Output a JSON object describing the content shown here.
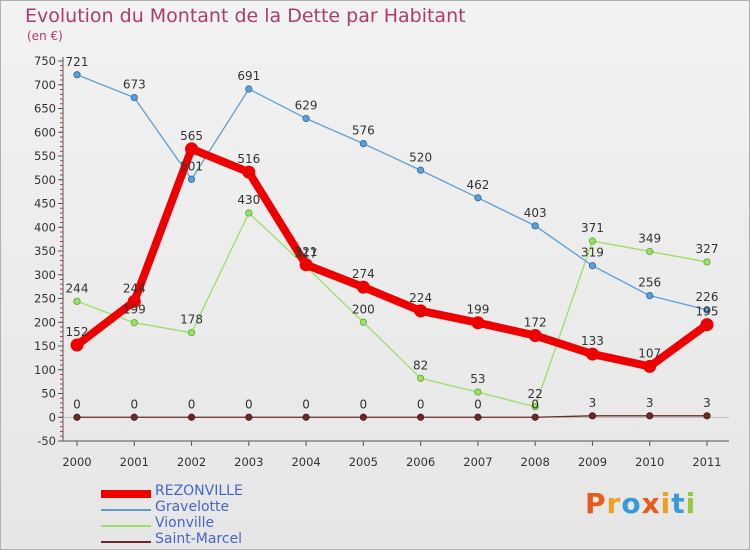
{
  "chart_data": {
    "type": "line",
    "title": "Evolution du Montant de la Dette par Habitant",
    "subtitle": "(en €)",
    "categories": [
      "2000",
      "2001",
      "2002",
      "2003",
      "2004",
      "2005",
      "2006",
      "2007",
      "2008",
      "2009",
      "2010",
      "2011"
    ],
    "ylim": [
      -50,
      750
    ],
    "yticks": [
      -50,
      0,
      50,
      100,
      150,
      200,
      250,
      300,
      350,
      400,
      450,
      500,
      550,
      600,
      650,
      700,
      750
    ],
    "grid": false,
    "legend_position": "bottom-left",
    "series": [
      {
        "name": "REZONVILLE",
        "color": "#ee0000",
        "values": [
          152,
          244,
          565,
          516,
          321,
          274,
          224,
          199,
          172,
          133,
          107,
          195
        ]
      },
      {
        "name": "Gravelotte",
        "color": "#5c9fd8",
        "values": [
          721,
          673,
          501,
          691,
          629,
          576,
          520,
          462,
          403,
          319,
          256,
          226
        ]
      },
      {
        "name": "Vionville",
        "color": "#99e066",
        "values": [
          244,
          199,
          178,
          430,
          317,
          200,
          82,
          53,
          22,
          371,
          349,
          327
        ]
      },
      {
        "name": "Saint-Marcel",
        "color": "#6b2a2a",
        "values": [
          0,
          0,
          0,
          0,
          0,
          0,
          0,
          0,
          0,
          3,
          3,
          3
        ]
      }
    ]
  },
  "brand": {
    "letters": [
      "P",
      "r",
      "o",
      "x",
      "i",
      "t",
      "i"
    ],
    "colors": [
      "#e85a1e",
      "#f0a020",
      "#3a9ad9",
      "#e85a1e",
      "#f0a020",
      "#3a9ad9",
      "#9ac83a"
    ]
  }
}
